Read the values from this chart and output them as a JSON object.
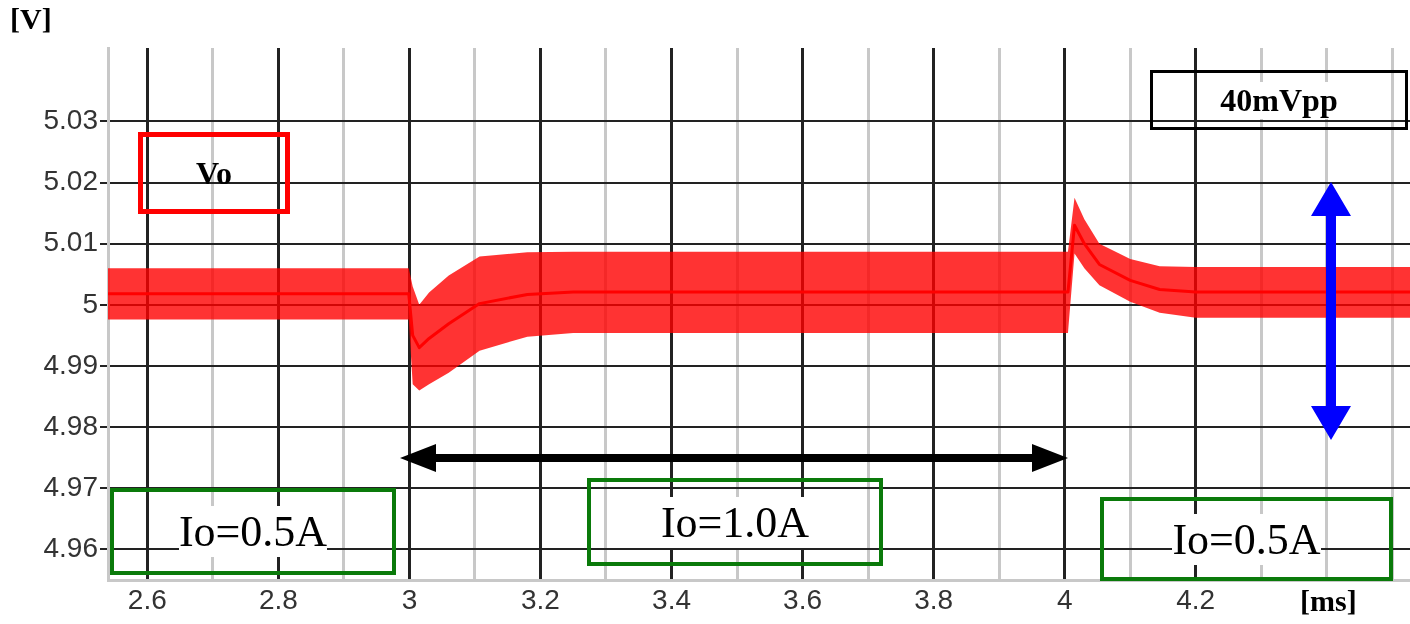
{
  "chart_data": {
    "type": "line",
    "xlabel": "[ms]",
    "ylabel": "[V]",
    "x": [
      2.54,
      2.999,
      3.005,
      3.015,
      3.03,
      3.06,
      3.107,
      3.18,
      3.25,
      4.005,
      4.015,
      4.03,
      4.053,
      4.1,
      4.145,
      4.2,
      4.527
    ],
    "series": [
      {
        "name": "Vo",
        "color": "#ff0000",
        "values": [
          5.0018,
          5.0018,
          4.995,
          4.993,
          4.9945,
          4.9969,
          5.0002,
          5.0017,
          5.0021,
          5.0021,
          5.013,
          5.01,
          5.0066,
          5.004,
          5.0025,
          5.0021,
          5.0021
        ],
        "lower": [
          4.9976,
          4.9976,
          4.987,
          4.986,
          4.987,
          4.9889,
          4.9925,
          4.9948,
          4.9954,
          4.9954,
          5.0084,
          5.006,
          5.0032,
          5.0005,
          4.9987,
          4.9979,
          4.9979
        ],
        "upper": [
          5.006,
          5.006,
          5.003,
          5.0,
          5.002,
          5.0048,
          5.0079,
          5.0086,
          5.0087,
          5.0087,
          5.0175,
          5.014,
          5.01,
          5.0075,
          5.0063,
          5.0062,
          5.0062
        ]
      }
    ],
    "xlim": [
      2.54,
      4.527
    ],
    "xticks": [
      2.6,
      {
        "value": 2.7,
        "label": null
      },
      2.8,
      {
        "value": 2.9,
        "label": null
      },
      3,
      {
        "value": 3.1,
        "label": null
      },
      3.2,
      {
        "value": 3.3,
        "label": null
      },
      3.4,
      {
        "value": 3.5,
        "label": null
      },
      3.6,
      {
        "value": 3.7,
        "label": null
      },
      3.8,
      {
        "value": 3.9,
        "label": null
      },
      4,
      {
        "value": 4.1,
        "label": null
      },
      4.2,
      {
        "value": 4.3,
        "label": null
      },
      {
        "value": 4.4,
        "label": null
      },
      {
        "value": 4.5,
        "label": null
      }
    ],
    "ylim": [
      4.955,
      5.042
    ],
    "yticks": [
      4.96,
      4.97,
      4.98,
      4.99,
      5,
      5.01,
      5.02,
      5.03
    ],
    "grid": true,
    "legend": false,
    "marker": "none",
    "line_style": "solid",
    "annotations": [
      "40mVpp",
      "Io=0.5A",
      "Io=1.0A",
      "Io=0.5A"
    ]
  }
}
